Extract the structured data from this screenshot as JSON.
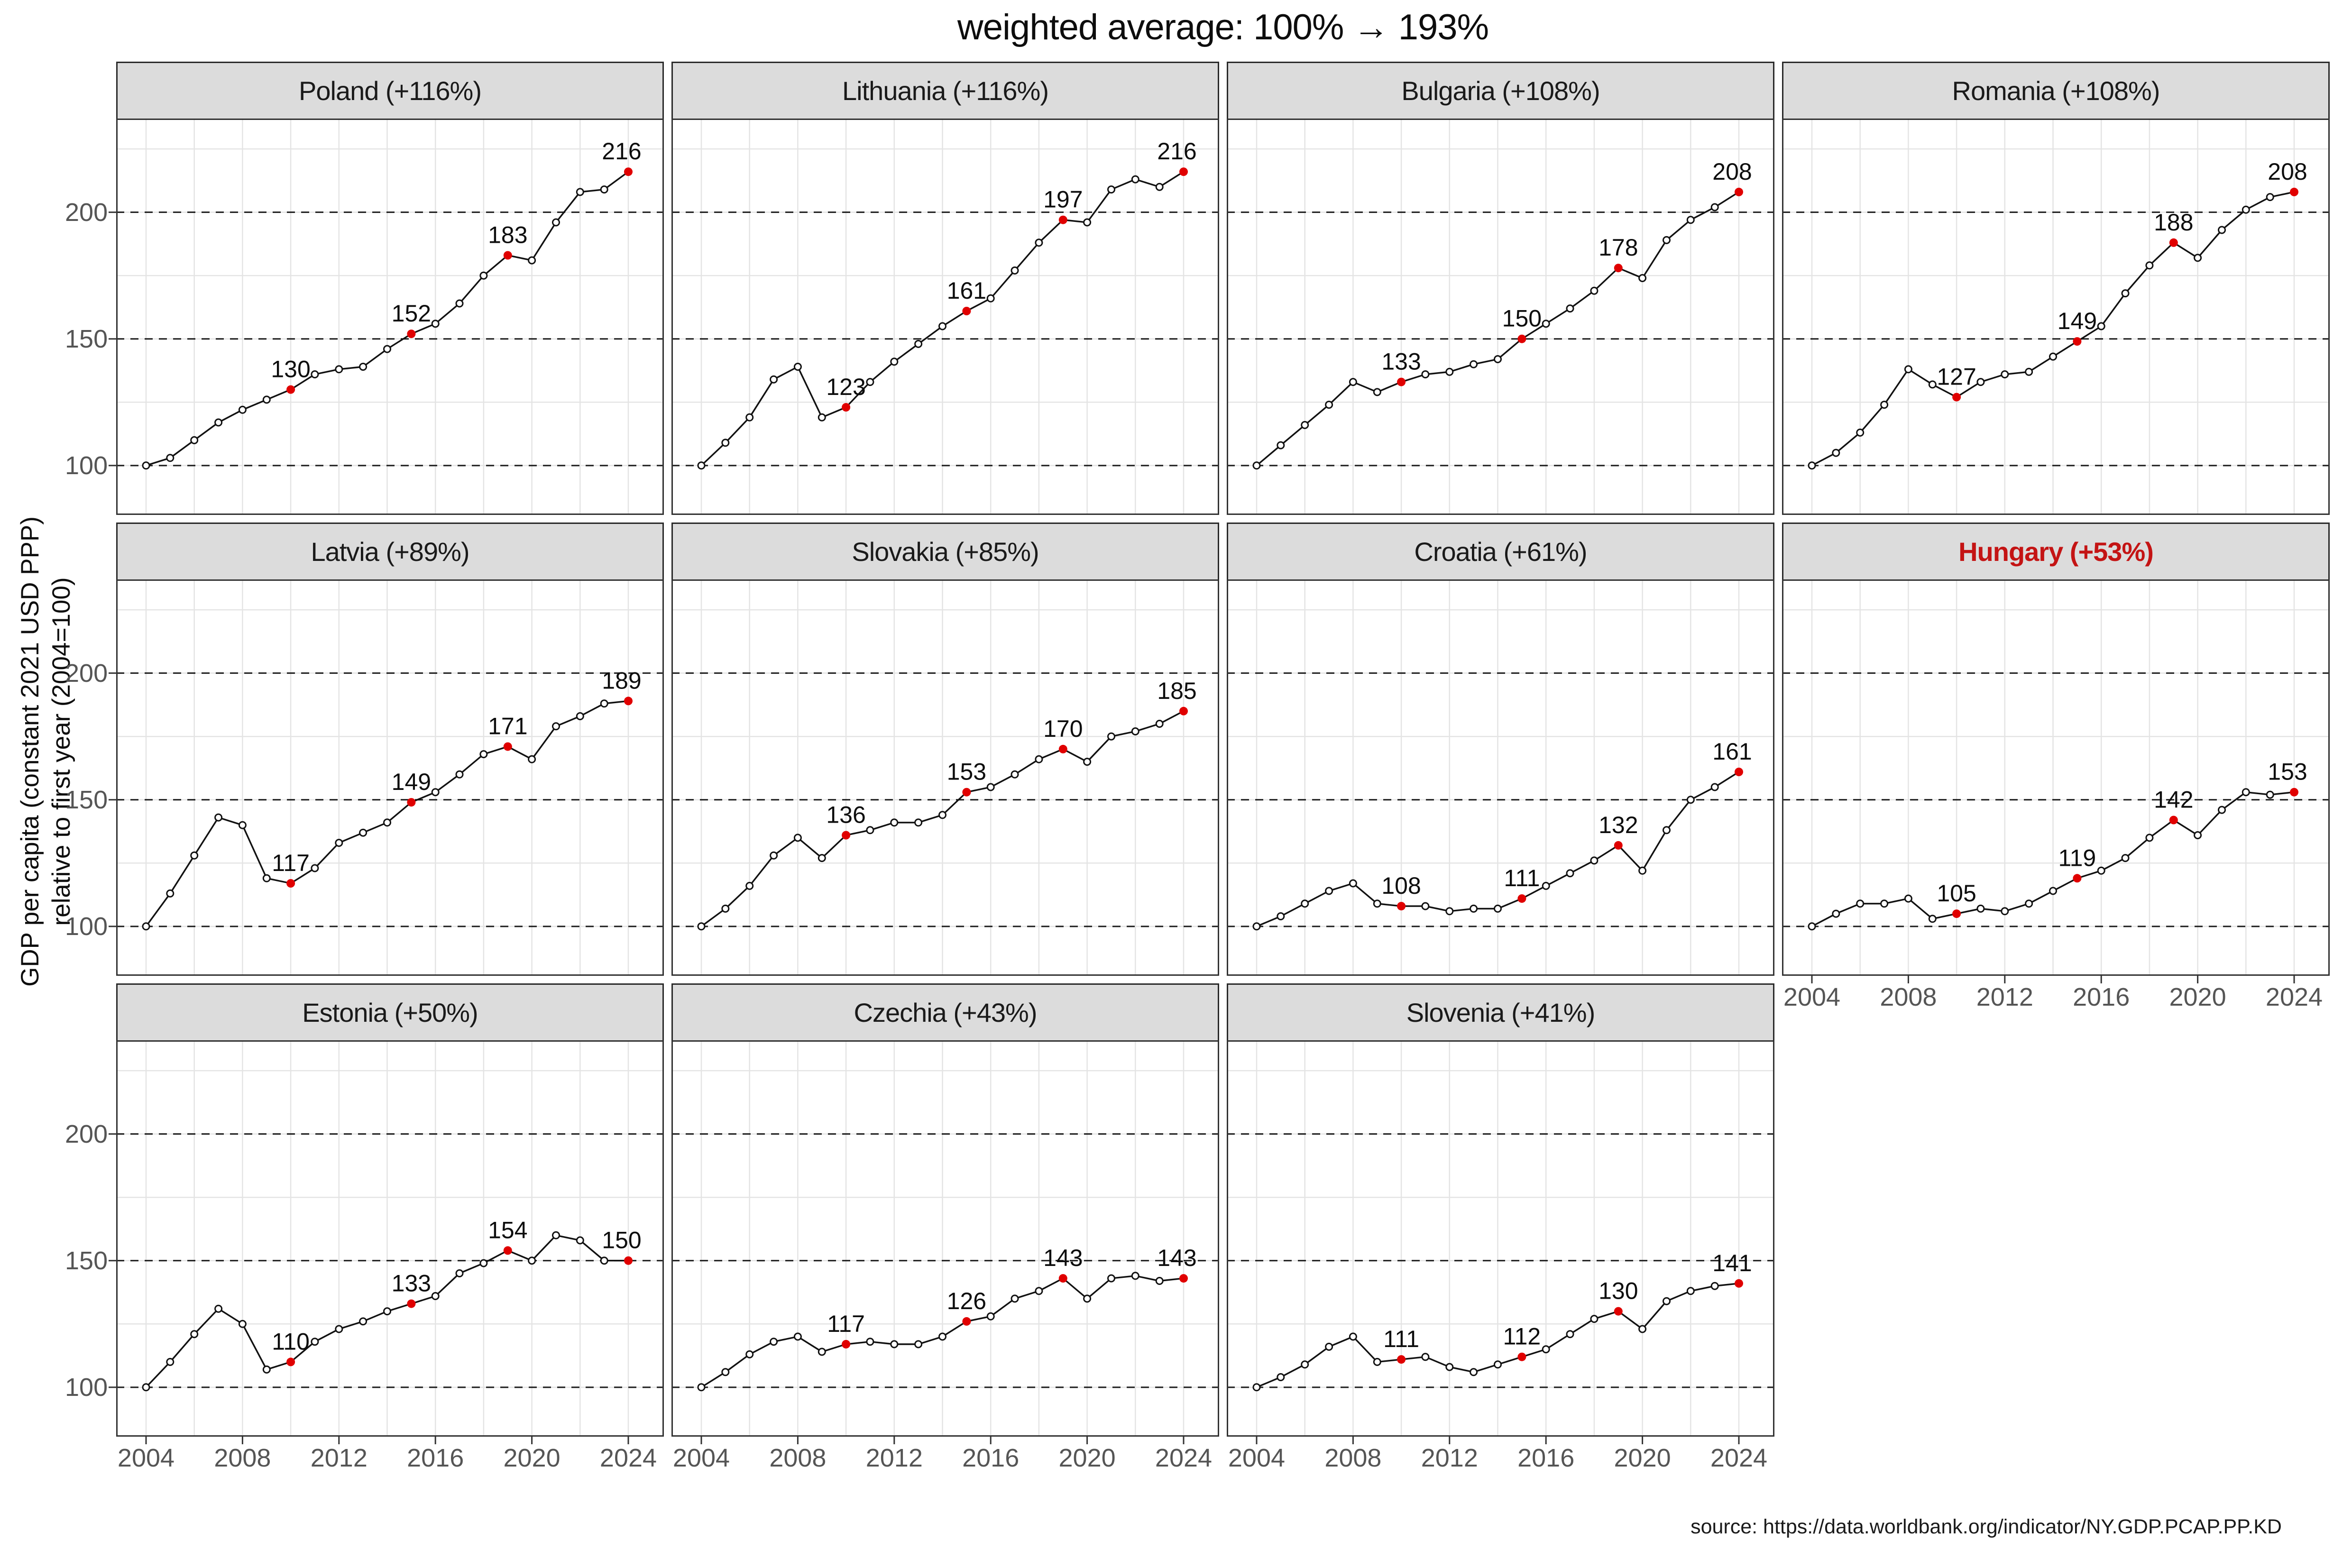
{
  "header": {
    "title": "weighted average: 100% → 193%"
  },
  "axis": {
    "y_label_line1": "GDP per capita (constant 2021 USD PPP)",
    "y_label_line2": "relative to first year (2004=100)"
  },
  "footer": {
    "caption": "source: https://data.worldbank.org/indicator/NY.GDP.PCAP.PP.KD"
  },
  "colors": {
    "highlight_title": "#c41414",
    "point_red": "#e00000",
    "line": "#111111",
    "grid": "#e4e4e4",
    "dashed": "#1a1a1a",
    "strip_bg": "#dcdcdc",
    "border": "#333333",
    "tick_text": "#555555"
  },
  "chart_data": {
    "type": "line",
    "title": "weighted average: 100% → 193%",
    "x_range": [
      2004,
      2024
    ],
    "x_ticks": [
      2004,
      2008,
      2012,
      2016,
      2020,
      2024
    ],
    "x_grid_step": 2,
    "y_ticks": [
      100,
      150,
      200
    ],
    "y_minor_grid": [
      125,
      175,
      225
    ],
    "ylim": [
      80.5,
      237
    ],
    "grid": true,
    "legend": "none",
    "label_years": [
      2010,
      2015,
      2019,
      2024
    ],
    "panels": [
      {
        "country": "Poland",
        "change": "+116%",
        "highlight": false,
        "values": [
          100,
          103,
          110,
          117,
          122,
          126,
          130,
          136,
          138,
          139,
          146,
          152,
          156,
          164,
          175,
          183,
          181,
          196,
          208,
          209,
          216
        ],
        "point_labels": [
          130,
          152,
          183,
          216
        ]
      },
      {
        "country": "Lithuania",
        "change": "+116%",
        "highlight": false,
        "values": [
          100,
          109,
          119,
          134,
          139,
          119,
          123,
          133,
          141,
          148,
          155,
          161,
          166,
          177,
          188,
          197,
          196,
          209,
          213,
          210,
          216
        ],
        "point_labels": [
          123,
          161,
          197,
          216
        ]
      },
      {
        "country": "Bulgaria",
        "change": "+108%",
        "highlight": false,
        "values": [
          100,
          108,
          116,
          124,
          133,
          129,
          133,
          136,
          137,
          140,
          142,
          150,
          156,
          162,
          169,
          178,
          174,
          189,
          197,
          202,
          208
        ],
        "point_labels": [
          133,
          150,
          178,
          208
        ]
      },
      {
        "country": "Romania",
        "change": "+108%",
        "highlight": false,
        "values": [
          100,
          105,
          113,
          124,
          138,
          132,
          127,
          133,
          136,
          137,
          143,
          149,
          155,
          168,
          179,
          188,
          182,
          193,
          201,
          206,
          208
        ],
        "point_labels": [
          127,
          149,
          188,
          208
        ]
      },
      {
        "country": "Latvia",
        "change": "+89%",
        "highlight": false,
        "values": [
          100,
          113,
          128,
          143,
          140,
          119,
          117,
          123,
          133,
          137,
          141,
          149,
          153,
          160,
          168,
          171,
          166,
          179,
          183,
          188,
          189
        ],
        "point_labels": [
          117,
          149,
          171,
          189
        ]
      },
      {
        "country": "Slovakia",
        "change": "+85%",
        "highlight": false,
        "values": [
          100,
          107,
          116,
          128,
          135,
          127,
          136,
          138,
          141,
          141,
          144,
          153,
          155,
          160,
          166,
          170,
          165,
          175,
          177,
          180,
          185
        ],
        "point_labels": [
          136,
          153,
          170,
          185
        ]
      },
      {
        "country": "Croatia",
        "change": "+61%",
        "highlight": false,
        "values": [
          100,
          104,
          109,
          114,
          117,
          109,
          108,
          108,
          106,
          107,
          107,
          111,
          116,
          121,
          126,
          132,
          122,
          138,
          150,
          155,
          161
        ],
        "point_labels": [
          108,
          111,
          132,
          161
        ]
      },
      {
        "country": "Hungary",
        "change": "+53%",
        "highlight": true,
        "values": [
          100,
          105,
          109,
          109,
          111,
          103,
          105,
          107,
          106,
          109,
          114,
          119,
          122,
          127,
          135,
          142,
          136,
          146,
          153,
          152,
          153
        ],
        "point_labels": [
          105,
          119,
          142,
          153
        ]
      },
      {
        "country": "Estonia",
        "change": "+50%",
        "highlight": false,
        "values": [
          100,
          110,
          121,
          131,
          125,
          107,
          110,
          118,
          123,
          126,
          130,
          133,
          136,
          145,
          149,
          154,
          150,
          160,
          158,
          150,
          150
        ],
        "point_labels": [
          110,
          133,
          154,
          150
        ]
      },
      {
        "country": "Czechia",
        "change": "+43%",
        "highlight": false,
        "values": [
          100,
          106,
          113,
          118,
          120,
          114,
          117,
          118,
          117,
          117,
          120,
          126,
          128,
          135,
          138,
          143,
          135,
          143,
          144,
          142,
          143
        ],
        "point_labels": [
          117,
          126,
          143,
          143
        ]
      },
      {
        "country": "Slovenia",
        "change": "+41%",
        "highlight": false,
        "values": [
          100,
          104,
          109,
          116,
          120,
          110,
          111,
          112,
          108,
          106,
          109,
          112,
          115,
          121,
          127,
          130,
          123,
          134,
          138,
          140,
          141
        ],
        "point_labels": [
          111,
          112,
          130,
          141
        ]
      }
    ]
  }
}
